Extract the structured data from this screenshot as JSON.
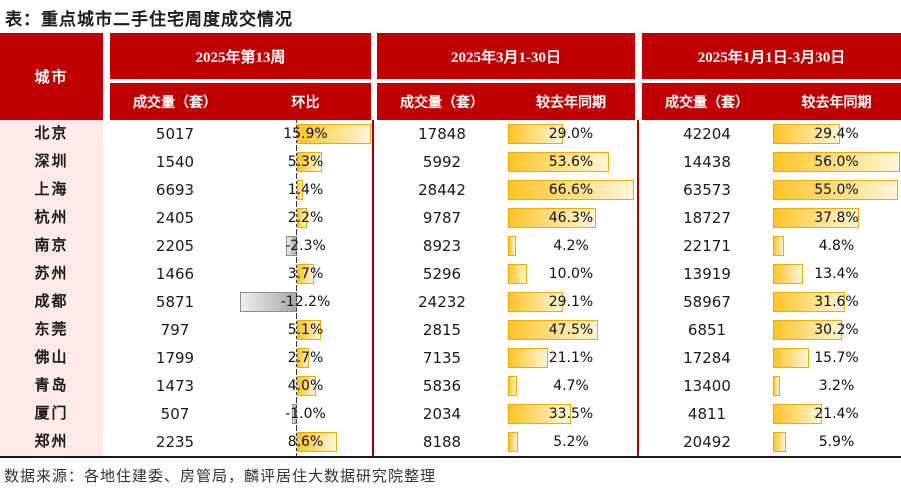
{
  "title": "表：重点城市二手住宅周度成交情况",
  "source_note": "数据来源：各地住建委、房管局，麟评居住大数据研究院整理",
  "header": {
    "city": "城市",
    "groups": [
      {
        "label": "2025年第13周",
        "sub_volume": "成交量（套）",
        "sub_change": "环比"
      },
      {
        "label": "2025年3月1-30日",
        "sub_volume": "成交量（套）",
        "sub_change": "较去年同期"
      },
      {
        "label": "2025年1月1日-3月30日",
        "sub_volume": "成交量（套）",
        "sub_change": "较去年同期"
      }
    ]
  },
  "colors": {
    "header_bg": "#C00000",
    "city_col_bg": "#FCE9E8",
    "divider": "#A40000",
    "bottom_border": "#1A1A1A",
    "bar_positive_start": "#FFC428",
    "bar_positive_end": "#FFF6D8",
    "bar_positive_border": "#EDAD00",
    "bar_negative_start": "#EFEFEF",
    "bar_negative_end": "#A8A8A8",
    "bar_negative_border": "#8F8F8F"
  },
  "chart_data": {
    "type": "table",
    "title": "重点城市二手住宅周度成交情况",
    "columns": [
      "城市",
      "2025年第13周 成交量（套）",
      "2025年第13周 环比",
      "2025年3月1-30日 成交量（套）",
      "2025年3月1-30日 较去年同期",
      "2025年1月1日-3月30日 成交量（套）",
      "2025年1月1日-3月30日 较去年同期"
    ],
    "bar_axes": {
      "week_min": -12.2,
      "week_max": 15.9,
      "mar_min": 0,
      "mar_max": 66.6,
      "ytd_min": 0,
      "ytd_max": 56.0
    },
    "rows": [
      {
        "city": "北京",
        "week_volume": 5017,
        "week_wow": "15.9%",
        "week_wow_value": 15.9,
        "mar_volume": 17848,
        "mar_yoy": "29.0%",
        "mar_yoy_value": 29.0,
        "ytd_volume": 42204,
        "ytd_yoy": "29.4%",
        "ytd_yoy_value": 29.4
      },
      {
        "city": "深圳",
        "week_volume": 1540,
        "week_wow": "5.3%",
        "week_wow_value": 5.3,
        "mar_volume": 5992,
        "mar_yoy": "53.6%",
        "mar_yoy_value": 53.6,
        "ytd_volume": 14438,
        "ytd_yoy": "56.0%",
        "ytd_yoy_value": 56.0
      },
      {
        "city": "上海",
        "week_volume": 6693,
        "week_wow": "1.4%",
        "week_wow_value": 1.4,
        "mar_volume": 28442,
        "mar_yoy": "66.6%",
        "mar_yoy_value": 66.6,
        "ytd_volume": 63573,
        "ytd_yoy": "55.0%",
        "ytd_yoy_value": 55.0
      },
      {
        "city": "杭州",
        "week_volume": 2405,
        "week_wow": "2.2%",
        "week_wow_value": 2.2,
        "mar_volume": 9787,
        "mar_yoy": "46.3%",
        "mar_yoy_value": 46.3,
        "ytd_volume": 18727,
        "ytd_yoy": "37.8%",
        "ytd_yoy_value": 37.8
      },
      {
        "city": "南京",
        "week_volume": 2205,
        "week_wow": "-2.3%",
        "week_wow_value": -2.3,
        "mar_volume": 8923,
        "mar_yoy": "4.2%",
        "mar_yoy_value": 4.2,
        "ytd_volume": 22171,
        "ytd_yoy": "4.8%",
        "ytd_yoy_value": 4.8
      },
      {
        "city": "苏州",
        "week_volume": 1466,
        "week_wow": "3.7%",
        "week_wow_value": 3.7,
        "mar_volume": 5296,
        "mar_yoy": "10.0%",
        "mar_yoy_value": 10.0,
        "ytd_volume": 13919,
        "ytd_yoy": "13.4%",
        "ytd_yoy_value": 13.4
      },
      {
        "city": "成都",
        "week_volume": 5871,
        "week_wow": "-12.2%",
        "week_wow_value": -12.2,
        "mar_volume": 24232,
        "mar_yoy": "29.1%",
        "mar_yoy_value": 29.1,
        "ytd_volume": 58967,
        "ytd_yoy": "31.6%",
        "ytd_yoy_value": 31.6
      },
      {
        "city": "东莞",
        "week_volume": 797,
        "week_wow": "5.1%",
        "week_wow_value": 5.1,
        "mar_volume": 2815,
        "mar_yoy": "47.5%",
        "mar_yoy_value": 47.5,
        "ytd_volume": 6851,
        "ytd_yoy": "30.2%",
        "ytd_yoy_value": 30.2
      },
      {
        "city": "佛山",
        "week_volume": 1799,
        "week_wow": "2.7%",
        "week_wow_value": 2.7,
        "mar_volume": 7135,
        "mar_yoy": "21.1%",
        "mar_yoy_value": 21.1,
        "ytd_volume": 17284,
        "ytd_yoy": "15.7%",
        "ytd_yoy_value": 15.7
      },
      {
        "city": "青岛",
        "week_volume": 1473,
        "week_wow": "4.0%",
        "week_wow_value": 4.0,
        "mar_volume": 5836,
        "mar_yoy": "4.7%",
        "mar_yoy_value": 4.7,
        "ytd_volume": 13400,
        "ytd_yoy": "3.2%",
        "ytd_yoy_value": 3.2
      },
      {
        "city": "厦门",
        "week_volume": 507,
        "week_wow": "-1.0%",
        "week_wow_value": -1.0,
        "mar_volume": 2034,
        "mar_yoy": "33.5%",
        "mar_yoy_value": 33.5,
        "ytd_volume": 4811,
        "ytd_yoy": "21.4%",
        "ytd_yoy_value": 21.4
      },
      {
        "city": "郑州",
        "week_volume": 2235,
        "week_wow": "8.6%",
        "week_wow_value": 8.6,
        "mar_volume": 8188,
        "mar_yoy": "5.2%",
        "mar_yoy_value": 5.2,
        "ytd_volume": 20492,
        "ytd_yoy": "5.9%",
        "ytd_yoy_value": 5.9
      }
    ]
  }
}
